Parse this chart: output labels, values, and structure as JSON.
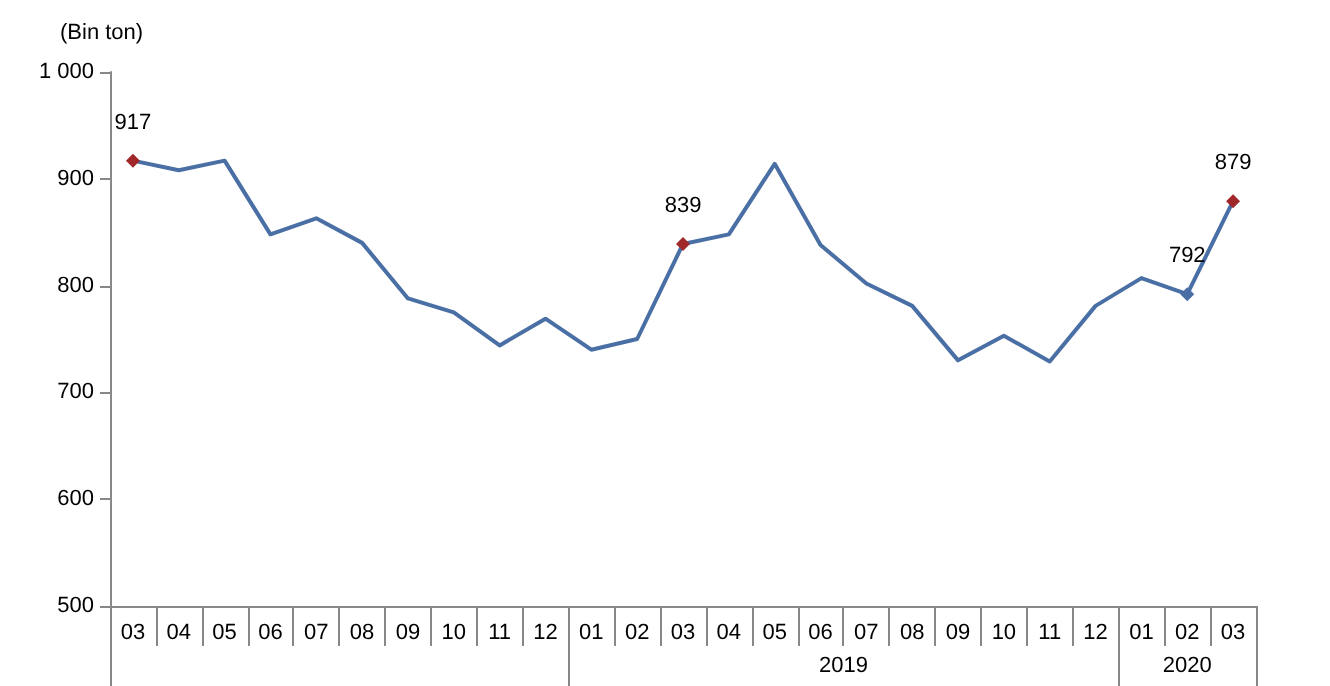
{
  "chart_data": {
    "type": "line",
    "ylabel": "(Bin ton)",
    "categories": [
      "03",
      "04",
      "05",
      "06",
      "07",
      "08",
      "09",
      "10",
      "11",
      "12",
      "01",
      "02",
      "03",
      "04",
      "05",
      "06",
      "07",
      "08",
      "09",
      "10",
      "11",
      "12",
      "01",
      "02",
      "03"
    ],
    "series": [
      {
        "color": "#4a6fa5",
        "values": [
          917,
          908,
          917,
          848,
          863,
          840,
          788,
          775,
          744,
          769,
          740,
          750,
          839,
          848,
          914,
          838,
          802,
          781,
          730,
          753,
          729,
          781,
          807,
          792,
          879
        ],
        "value_labels": [
          "917",
          null,
          null,
          null,
          null,
          null,
          null,
          null,
          null,
          null,
          null,
          null,
          "839",
          null,
          null,
          null,
          null,
          null,
          null,
          null,
          null,
          null,
          null,
          "792",
          "879"
        ],
        "colors": [
          "#a0282b",
          null,
          null,
          null,
          null,
          null,
          null,
          null,
          null,
          null,
          null,
          null,
          "#a0282b",
          null,
          null,
          null,
          null,
          null,
          null,
          null,
          null,
          null,
          null,
          "#4a6fa5",
          "#a0282b"
        ]
      }
    ],
    "ylim": [
      500,
      1000
    ],
    "yticks": [
      500,
      600,
      700,
      800,
      900,
      {
        "value": 1000,
        "label": "1 000"
      }
    ],
    "annotations": [
      "2019",
      "2020"
    ],
    "grid": false,
    "line_style": "solid"
  }
}
